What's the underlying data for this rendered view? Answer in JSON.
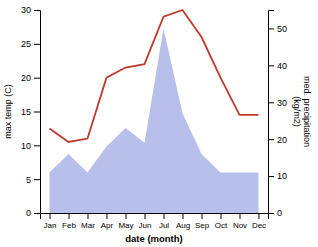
{
  "chart_data": {
    "type": "line",
    "categories": [
      "Jan",
      "Feb",
      "Mar",
      "Apr",
      "May",
      "Jun",
      "Jul",
      "Aug",
      "Sep",
      "Oct",
      "Nov",
      "Dec"
    ],
    "xlabel": "date (month)",
    "ylabel": "max temp (C)",
    "y2label": "med. precipitation\n(kg/m2)",
    "series": [
      {
        "type": "line",
        "color": "#c0392b",
        "values": [
          12.5,
          10.5,
          11.0,
          20.0,
          21.5,
          22.0,
          29.0,
          30.0,
          26.0,
          20.0,
          14.5,
          14.5
        ]
      },
      {
        "type": "area",
        "color": "#b8bfea",
        "axis": "y2",
        "values": [
          11,
          16,
          11,
          18,
          23,
          19,
          50,
          27,
          16,
          11,
          11,
          11
        ]
      }
    ],
    "ylim": [
      0,
      30
    ],
    "yticks": [
      0,
      5,
      10,
      15,
      20,
      25,
      30
    ],
    "y2lim": [
      0,
      55
    ],
    "y2ticks": [
      0,
      10,
      20,
      30,
      40,
      50
    ],
    "grid": false
  }
}
